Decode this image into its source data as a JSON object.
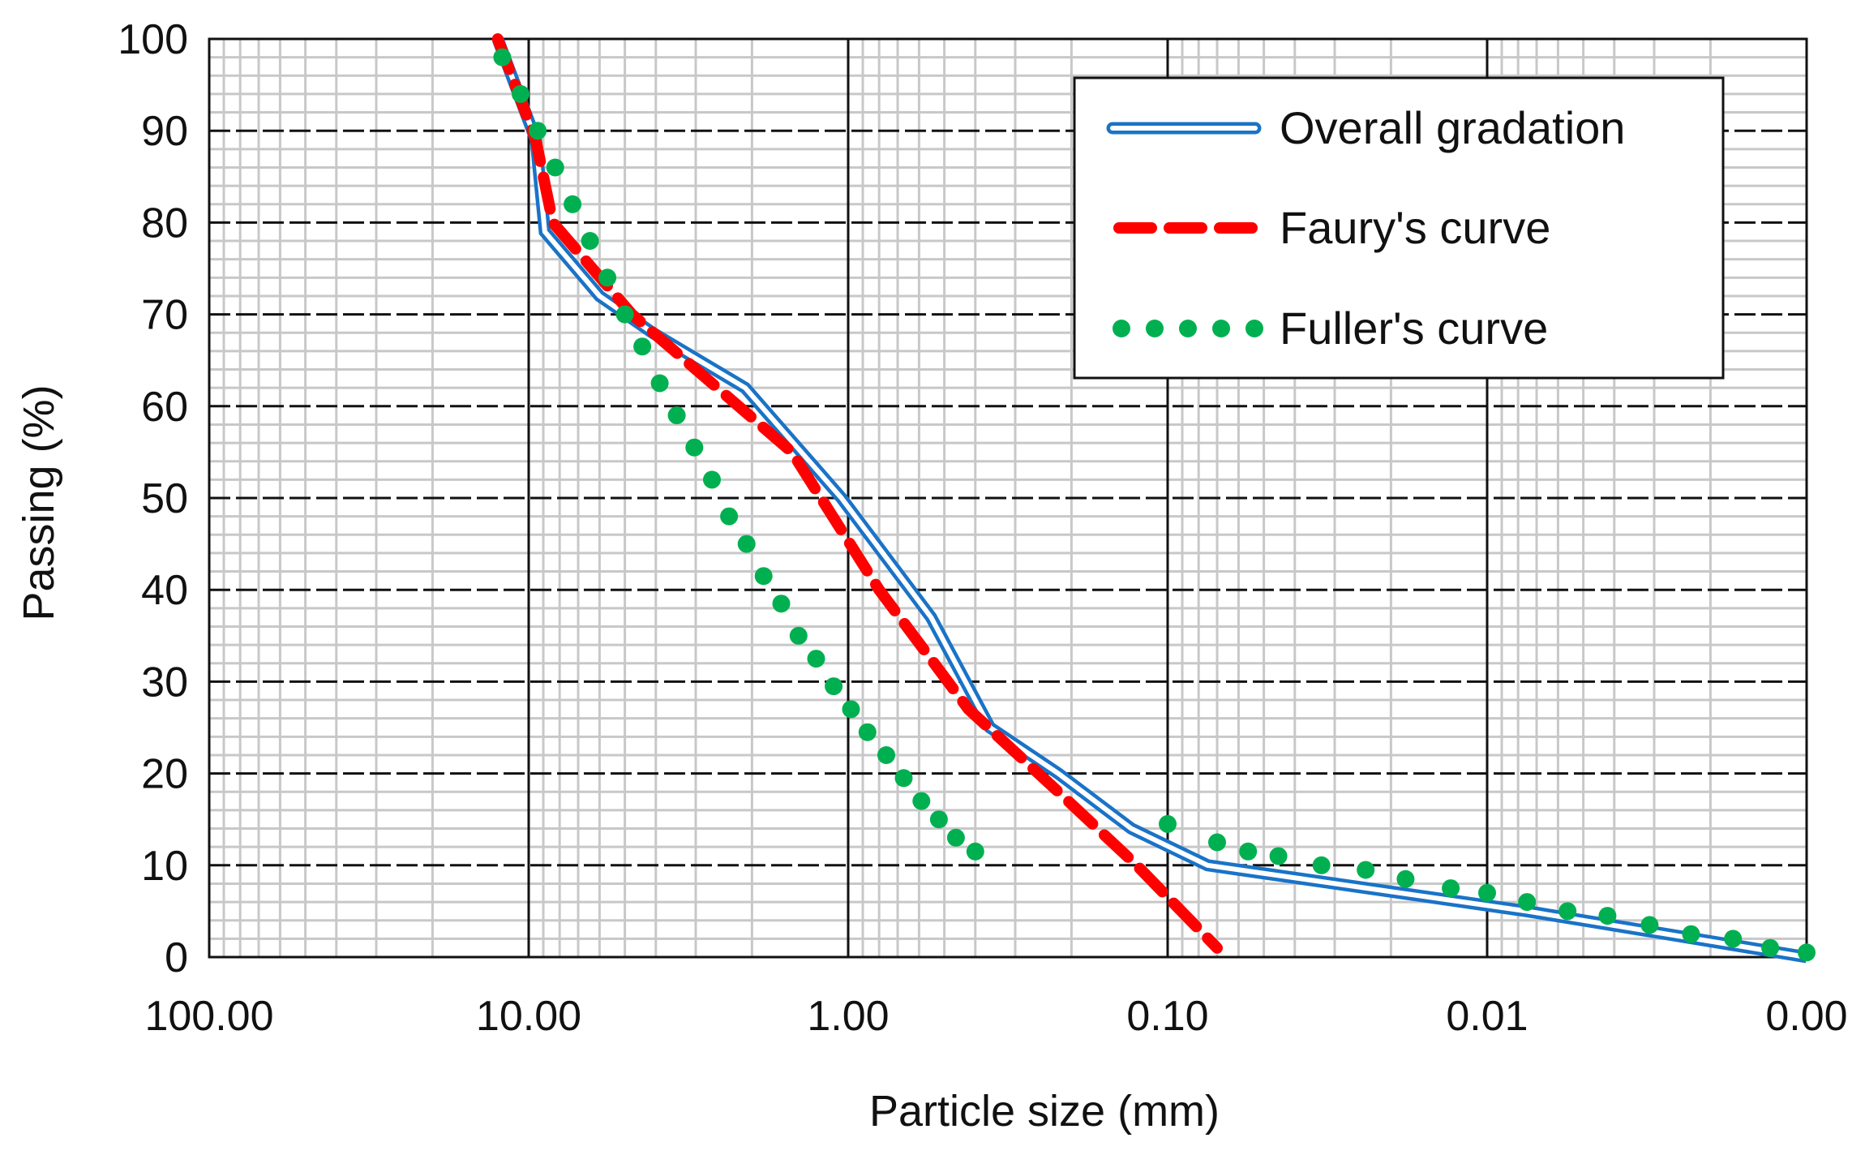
{
  "chart_data": {
    "type": "line",
    "title": "",
    "xlabel": "Particle size (mm)",
    "ylabel": "Passing (%)",
    "x_scale": "log",
    "x_reversed": true,
    "xlim": [
      100,
      0.001
    ],
    "ylim": [
      0,
      100
    ],
    "x_ticks": [
      {
        "value": 100,
        "label": "100.00"
      },
      {
        "value": 10,
        "label": "10.00"
      },
      {
        "value": 1,
        "label": "1.00"
      },
      {
        "value": 0.1,
        "label": "0.10"
      },
      {
        "value": 0.01,
        "label": "0.01"
      },
      {
        "value": 0.001,
        "label": "0.00"
      }
    ],
    "y_ticks": [
      0,
      10,
      20,
      30,
      40,
      50,
      60,
      70,
      80,
      90,
      100
    ],
    "grid": true,
    "legend_position": "top-right",
    "series": [
      {
        "name": "Overall gradation",
        "style": "double-line",
        "color": "#1a73c7",
        "points": [
          [
            12.5,
            100
          ],
          [
            9.5,
            89
          ],
          [
            8.9,
            79
          ],
          [
            6,
            72
          ],
          [
            4.1,
            68
          ],
          [
            2.1,
            62
          ],
          [
            1.05,
            50
          ],
          [
            0.55,
            37
          ],
          [
            0.36,
            25
          ],
          [
            0.22,
            20
          ],
          [
            0.13,
            14
          ],
          [
            0.075,
            10
          ],
          [
            0.0075,
            5
          ],
          [
            0.001,
            0
          ]
        ]
      },
      {
        "name": "Faury's curve",
        "style": "dashed",
        "color": "#ff0000",
        "points": [
          [
            12.5,
            100
          ],
          [
            9.5,
            89
          ],
          [
            8.4,
            80
          ],
          [
            4.75,
            70
          ],
          [
            1.5,
            55
          ],
          [
            0.8,
            40
          ],
          [
            0.42,
            27
          ],
          [
            0.22,
            18
          ],
          [
            0.125,
            10
          ],
          [
            0.07,
            1
          ]
        ]
      },
      {
        "name": "Fuller's curve",
        "style": "dotted",
        "color": "#00b050",
        "points": [
          [
            12.1,
            98
          ],
          [
            10.6,
            94
          ],
          [
            9.37,
            90
          ],
          [
            8.26,
            86
          ],
          [
            7.29,
            82
          ],
          [
            6.43,
            78
          ],
          [
            5.67,
            74
          ],
          [
            5.0,
            70
          ],
          [
            4.41,
            66.5
          ],
          [
            3.89,
            62.5
          ],
          [
            3.44,
            59
          ],
          [
            3.03,
            55.5
          ],
          [
            2.67,
            52
          ],
          [
            2.36,
            48
          ],
          [
            2.08,
            45
          ],
          [
            1.84,
            41.5
          ],
          [
            1.62,
            38.5
          ],
          [
            1.43,
            35
          ],
          [
            1.26,
            32.5
          ],
          [
            1.11,
            29.5
          ],
          [
            0.98,
            27
          ],
          [
            0.87,
            24.5
          ],
          [
            0.76,
            22
          ],
          [
            0.67,
            19.5
          ],
          [
            0.59,
            17
          ],
          [
            0.52,
            15
          ],
          [
            0.46,
            13
          ],
          [
            0.4,
            11.5
          ],
          [
            0.1,
            14.5
          ],
          [
            0.07,
            12.5
          ],
          [
            0.056,
            11.5
          ],
          [
            0.045,
            11
          ],
          [
            0.033,
            10
          ],
          [
            0.024,
            9.5
          ],
          [
            0.018,
            8.5
          ],
          [
            0.013,
            7.5
          ],
          [
            0.01,
            7
          ],
          [
            0.0075,
            6
          ],
          [
            0.0056,
            5
          ],
          [
            0.0042,
            4.5
          ],
          [
            0.0031,
            3.5
          ],
          [
            0.0023,
            2.5
          ],
          [
            0.0017,
            2
          ],
          [
            0.0013,
            1
          ],
          [
            0.001,
            0.5
          ]
        ]
      }
    ]
  }
}
